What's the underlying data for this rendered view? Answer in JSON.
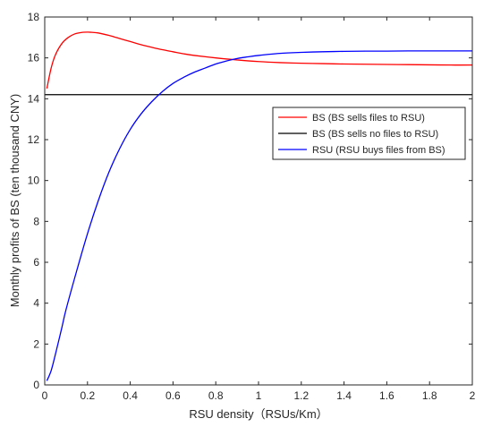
{
  "chart_data": {
    "type": "line",
    "title": "",
    "xlabel": "RSU density（RSUs/Km）",
    "ylabel": "Monthly profits of BS (ten thousand CNY)",
    "xlim": [
      0,
      2
    ],
    "ylim": [
      0,
      18
    ],
    "xticks": [
      0,
      0.2,
      0.4,
      0.6,
      0.8,
      1,
      1.2,
      1.4,
      1.6,
      1.8,
      2
    ],
    "xtick_labels": [
      "0",
      "0.2",
      "0.4",
      "0.6",
      "0.8",
      "1",
      "1.2",
      "1.4",
      "1.6",
      "1.8",
      "2"
    ],
    "yticks": [
      0,
      2,
      4,
      6,
      8,
      10,
      12,
      14,
      16,
      18
    ],
    "ytick_labels": [
      "0",
      "2",
      "4",
      "6",
      "8",
      "10",
      "12",
      "14",
      "16",
      "18"
    ],
    "grid": false,
    "legend_position": "upper-right",
    "series": [
      {
        "name": "BS (BS sells files to RSU)",
        "color": "#ff0000",
        "x": [
          0.01,
          0.03,
          0.05,
          0.08,
          0.11,
          0.14,
          0.17,
          0.2,
          0.22,
          0.25,
          0.3,
          0.35,
          0.4,
          0.45,
          0.5,
          0.55,
          0.6,
          0.65,
          0.7,
          0.8,
          0.9,
          1.0,
          1.1,
          1.2,
          1.3,
          1.4,
          1.5,
          1.6,
          1.7,
          1.8,
          1.9,
          2.0
        ],
        "y": [
          14.5,
          15.5,
          16.15,
          16.7,
          17.0,
          17.17,
          17.24,
          17.26,
          17.25,
          17.22,
          17.1,
          16.95,
          16.8,
          16.65,
          16.52,
          16.4,
          16.3,
          16.2,
          16.12,
          16.0,
          15.9,
          15.82,
          15.77,
          15.74,
          15.72,
          15.7,
          15.69,
          15.68,
          15.67,
          15.66,
          15.65,
          15.65
        ]
      },
      {
        "name": "BS (BS sells no files to RSU)",
        "color": "#000000",
        "x": [
          0,
          2
        ],
        "y": [
          14.2,
          14.2
        ]
      },
      {
        "name": "RSU (RSU buys files from BS)",
        "color": "#0000ff",
        "x": [
          0.01,
          0.03,
          0.05,
          0.08,
          0.1,
          0.15,
          0.2,
          0.25,
          0.3,
          0.35,
          0.4,
          0.45,
          0.5,
          0.55,
          0.6,
          0.65,
          0.7,
          0.75,
          0.8,
          0.85,
          0.9,
          0.95,
          1.0,
          1.1,
          1.2,
          1.3,
          1.4,
          1.5,
          1.6,
          1.7,
          1.8,
          1.9,
          2.0
        ],
        "y": [
          0.2,
          0.7,
          1.5,
          2.8,
          3.7,
          5.6,
          7.4,
          9.0,
          10.4,
          11.55,
          12.5,
          13.25,
          13.85,
          14.35,
          14.75,
          15.05,
          15.3,
          15.5,
          15.7,
          15.85,
          15.97,
          16.05,
          16.12,
          16.22,
          16.27,
          16.3,
          16.32,
          16.33,
          16.33,
          16.34,
          16.34,
          16.34,
          16.34
        ]
      }
    ]
  }
}
